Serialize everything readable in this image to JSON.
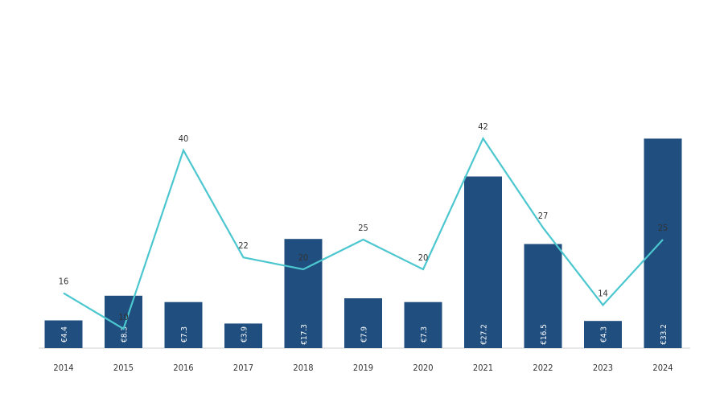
{
  "chart_data": {
    "type": "bar",
    "categories": [
      "2014",
      "2015",
      "2016",
      "2017",
      "2018",
      "2019",
      "2020",
      "2021",
      "2022",
      "2023",
      "2024"
    ],
    "series": [
      {
        "type": "bar",
        "values": [
          4.4,
          8.3,
          7.3,
          3.9,
          17.3,
          7.9,
          7.3,
          27.2,
          16.5,
          4.3,
          33.2
        ],
        "value_labels": [
          "€4.4",
          "€8.3",
          "€7.3",
          "€3.9",
          "€17.3",
          "€7.9",
          "€7.3",
          "€27.2",
          "€16.5",
          "€4.3",
          "€33.2"
        ]
      },
      {
        "type": "line",
        "values": [
          16,
          10,
          40,
          22,
          20,
          25,
          20,
          42,
          27,
          14,
          25
        ]
      }
    ],
    "colors": {
      "bar": "#1f4e7f",
      "line": "#4cc7cf",
      "axis": "#cfcfcf"
    },
    "grid": false,
    "legend": "none"
  }
}
